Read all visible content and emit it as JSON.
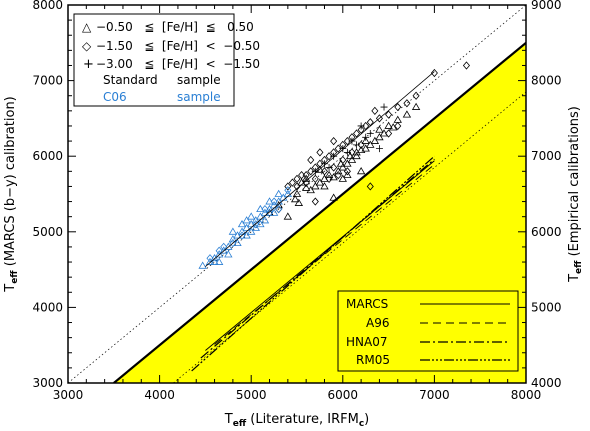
{
  "chart_data": {
    "type": "scatter",
    "xlabel": {
      "main": "T",
      "sub": "eff",
      "rest": " (Literature, IRFM",
      "sub2": "c",
      "close": ")"
    },
    "ylabel_left": {
      "main": "T",
      "sub": "eff",
      "rest": " (MARCS (b−y) calibration)"
    },
    "ylabel_right": {
      "main": "T",
      "sub": "eff",
      "rest": " (Empirical calibrations)"
    },
    "xlim": [
      3000,
      8000
    ],
    "ylim_left": [
      3000,
      8000
    ],
    "ylim_right": [
      4000,
      9000
    ],
    "x_ticks": [
      "3000",
      "4000",
      "5000",
      "6000",
      "7000",
      "8000"
    ],
    "y_ticks_left": [
      "3000",
      "4000",
      "5000",
      "6000",
      "7000",
      "8000"
    ],
    "y_ticks_right": [
      "4000",
      "5000",
      "6000",
      "7000",
      "8000",
      "9000"
    ],
    "colors": {
      "standard": "#000000",
      "c06": "#2a7fd4",
      "shade": "#ffff00"
    },
    "legend_top": [
      {
        "marker": "△",
        "range": "−0.50   ≦  [Fe/H]  ≦   0.50"
      },
      {
        "marker": "◇",
        "range": "−1.50   ≦  [Fe/H]  <  −0.50"
      },
      {
        "marker": "+",
        "range": "−3.00   ≦  [Fe/H]  <  −1.50"
      }
    ],
    "legend_samples": [
      {
        "left": "Standard",
        "right": "sample",
        "color": "#000000"
      },
      {
        "left": "C06",
        "right": "sample",
        "color": "#2a7fd4"
      }
    ],
    "legend_bottom": [
      {
        "label": "MARCS",
        "dash": "none",
        "width": 0.9
      },
      {
        "label": "A96",
        "dash": "8 5",
        "width": 0.9
      },
      {
        "label": "HNA07",
        "dash": "10 3 2 3",
        "width": 1.2
      },
      {
        "label": "RM05",
        "dash": "10 2 2 2 2 2 2 2",
        "width": 1.2
      }
    ],
    "identity_line": [
      [
        3000,
        3000
      ],
      [
        8000,
        8000
      ]
    ],
    "offset_line_left": [
      [
        3500,
        3000
      ],
      [
        8000,
        7500
      ]
    ],
    "offset_line_right_axis": [
      [
        4150,
        4000
      ],
      [
        8000,
        7850
      ]
    ],
    "fit_line_left": [
      [
        4500,
        4540
      ],
      [
        7000,
        7120
      ]
    ],
    "calibration_lines_right_axis": [
      {
        "label": "MARCS",
        "points": [
          [
            4500,
            4430
          ],
          [
            7000,
            6940
          ]
        ]
      },
      {
        "label": "A96",
        "points": [
          [
            4600,
            4510
          ],
          [
            7000,
            6890
          ]
        ]
      },
      {
        "label": "HNA07",
        "points": [
          [
            4450,
            4330
          ],
          [
            7000,
            6960
          ]
        ]
      },
      {
        "label": "RM05",
        "points": [
          [
            4350,
            4160
          ],
          [
            7000,
            7000
          ]
        ]
      }
    ],
    "series": [
      {
        "name": "Standard sample",
        "marker": "triangle",
        "color": "#000000",
        "points": [
          [
            5480,
            5430
          ],
          [
            5520,
            5380
          ],
          [
            5600,
            5580
          ],
          [
            5650,
            5550
          ],
          [
            5700,
            5600
          ],
          [
            5750,
            5650
          ],
          [
            5800,
            5700
          ],
          [
            5850,
            5750
          ],
          [
            5900,
            5720
          ],
          [
            5950,
            5800
          ],
          [
            6000,
            5850
          ],
          [
            6050,
            5900
          ],
          [
            6100,
            5950
          ],
          [
            6150,
            6000
          ],
          [
            6200,
            6080
          ],
          [
            6250,
            6100
          ],
          [
            6300,
            6150
          ],
          [
            6350,
            6200
          ],
          [
            6400,
            6250
          ],
          [
            6450,
            6300
          ],
          [
            6500,
            6400
          ],
          [
            6600,
            6480
          ],
          [
            6700,
            6550
          ],
          [
            6800,
            6650
          ],
          [
            6200,
            5800
          ],
          [
            5900,
            5450
          ],
          [
            5400,
            5200
          ],
          [
            5500,
            5500
          ],
          [
            5600,
            5700
          ],
          [
            6000,
            5700
          ],
          [
            6050,
            5750
          ],
          [
            5300,
            5350
          ],
          [
            5200,
            5250
          ],
          [
            5800,
            5600
          ],
          [
            5980,
            5900
          ],
          [
            6080,
            6000
          ],
          [
            6150,
            6050
          ],
          [
            6250,
            6200
          ],
          [
            6400,
            6350
          ],
          [
            6550,
            6380
          ],
          [
            5750,
            5820
          ],
          [
            5550,
            5650
          ]
        ]
      },
      {
        "name": "Standard sample",
        "marker": "diamond",
        "color": "#000000",
        "points": [
          [
            5450,
            5650
          ],
          [
            5500,
            5700
          ],
          [
            5550,
            5750
          ],
          [
            5600,
            5750
          ],
          [
            5650,
            5800
          ],
          [
            5700,
            5850
          ],
          [
            5750,
            5900
          ],
          [
            5800,
            5950
          ],
          [
            5850,
            6000
          ],
          [
            5900,
            6050
          ],
          [
            5950,
            6100
          ],
          [
            6000,
            6150
          ],
          [
            6050,
            6200
          ],
          [
            6100,
            6250
          ],
          [
            6150,
            6300
          ],
          [
            6200,
            6350
          ],
          [
            6250,
            6400
          ],
          [
            6300,
            6450
          ],
          [
            6400,
            6500
          ],
          [
            6500,
            6550
          ],
          [
            6600,
            6650
          ],
          [
            6700,
            6700
          ],
          [
            6800,
            6800
          ],
          [
            7000,
            7100
          ],
          [
            7350,
            7200
          ],
          [
            6600,
            6400
          ],
          [
            5500,
            5600
          ],
          [
            5600,
            5650
          ],
          [
            5700,
            5700
          ],
          [
            5800,
            5800
          ],
          [
            5900,
            5850
          ],
          [
            6000,
            5950
          ],
          [
            6100,
            6050
          ],
          [
            6200,
            6150
          ],
          [
            5650,
            5950
          ],
          [
            5750,
            6050
          ],
          [
            5850,
            5700
          ],
          [
            5950,
            5750
          ],
          [
            6050,
            5800
          ],
          [
            6350,
            6600
          ],
          [
            5400,
            5600
          ],
          [
            5300,
            5300
          ],
          [
            6300,
            5600
          ],
          [
            6500,
            6300
          ],
          [
            5900,
            6200
          ],
          [
            5700,
            5400
          ]
        ]
      },
      {
        "name": "Standard sample",
        "marker": "plus",
        "color": "#000000",
        "points": [
          [
            5800,
            5900
          ],
          [
            5900,
            6000
          ],
          [
            6000,
            6100
          ],
          [
            6100,
            6200
          ],
          [
            6200,
            6400
          ],
          [
            6300,
            6300
          ],
          [
            6400,
            6100
          ],
          [
            6050,
            6050
          ],
          [
            5700,
            5800
          ],
          [
            5850,
            5850
          ],
          [
            6150,
            6150
          ],
          [
            6450,
            6650
          ],
          [
            6250,
            6250
          ]
        ]
      },
      {
        "name": "C06 sample",
        "marker": "triangle",
        "color": "#2a7fd4",
        "points": [
          [
            4470,
            4550
          ],
          [
            4550,
            4600
          ],
          [
            4600,
            4650
          ],
          [
            4650,
            4700
          ],
          [
            4700,
            4750
          ],
          [
            4750,
            4800
          ],
          [
            4800,
            4900
          ],
          [
            4850,
            4950
          ],
          [
            4900,
            5000
          ],
          [
            4950,
            5050
          ],
          [
            5000,
            5100
          ],
          [
            5050,
            5150
          ],
          [
            5100,
            5200
          ],
          [
            5150,
            5250
          ],
          [
            5200,
            5300
          ],
          [
            5250,
            5350
          ],
          [
            5300,
            5400
          ],
          [
            5350,
            5450
          ],
          [
            5400,
            5500
          ],
          [
            4650,
            4600
          ],
          [
            4750,
            4700
          ],
          [
            4850,
            4850
          ],
          [
            4950,
            4950
          ],
          [
            5050,
            5050
          ],
          [
            5150,
            5150
          ],
          [
            5250,
            5250
          ],
          [
            4900,
            5100
          ],
          [
            5000,
            5200
          ],
          [
            5100,
            5300
          ],
          [
            5200,
            5400
          ],
          [
            4800,
            5000
          ],
          [
            5300,
            5500
          ],
          [
            4600,
            4600
          ],
          [
            5000,
            5000
          ],
          [
            5100,
            5100
          ],
          [
            4950,
            5150
          ]
        ]
      },
      {
        "name": "C06 sample",
        "marker": "diamond",
        "color": "#2a7fd4",
        "points": [
          [
            4550,
            4650
          ],
          [
            4700,
            4800
          ],
          [
            4900,
            4950
          ],
          [
            5050,
            5100
          ],
          [
            5200,
            5250
          ],
          [
            5300,
            5300
          ],
          [
            4800,
            4850
          ],
          [
            5150,
            5300
          ],
          [
            5250,
            5400
          ],
          [
            5400,
            5550
          ],
          [
            4650,
            4750
          ]
        ]
      }
    ]
  }
}
